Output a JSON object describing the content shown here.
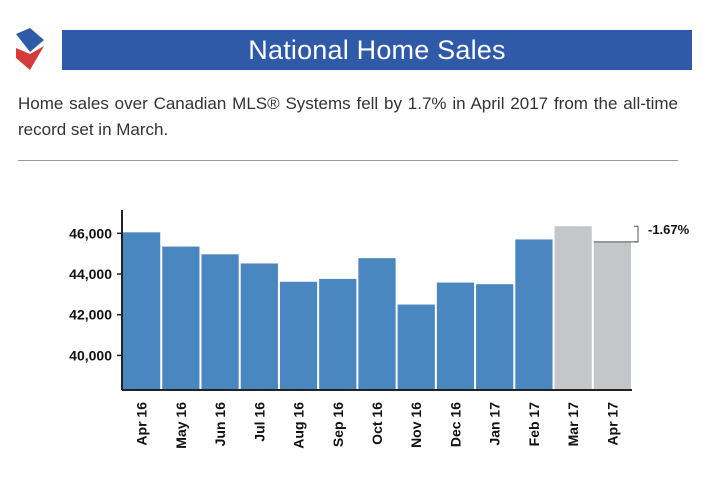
{
  "header": {
    "title": "National Home Sales",
    "subtitle": "Home sales over Canadian MLS® Systems fell by 1.7% in April 2017 from the all-time record set in March."
  },
  "colors": {
    "title_bar": "#2f5aa8",
    "bar_primary": "#4a86bf",
    "bar_highlight": "#c4c6ca",
    "logo_blue": "#2f5aa8",
    "logo_red": "#d63b3b"
  },
  "chart_data": {
    "type": "bar",
    "categories": [
      "Apr 16",
      "May 16",
      "Jun 16",
      "Jul 16",
      "Aug 16",
      "Sep 16",
      "Oct 16",
      "Nov 16",
      "Dec 16",
      "Jan 17",
      "Feb 17",
      "Mar 17",
      "Apr 17"
    ],
    "values": [
      46050,
      45350,
      44970,
      44520,
      43620,
      43760,
      44780,
      42500,
      43580,
      43500,
      45700,
      46350,
      45580
    ],
    "highlighted": [
      "Mar 17",
      "Apr 17"
    ],
    "ylim": [
      38300,
      47000
    ],
    "yticks": [
      40000,
      42000,
      44000,
      46000
    ],
    "ytick_labels": [
      "40,000",
      "42,000",
      "44,000",
      "46,000"
    ],
    "annotation": {
      "text": "-1.67%",
      "from": "Mar 17",
      "to": "Apr 17"
    },
    "grid": false,
    "title": "",
    "xlabel": "",
    "ylabel": ""
  }
}
